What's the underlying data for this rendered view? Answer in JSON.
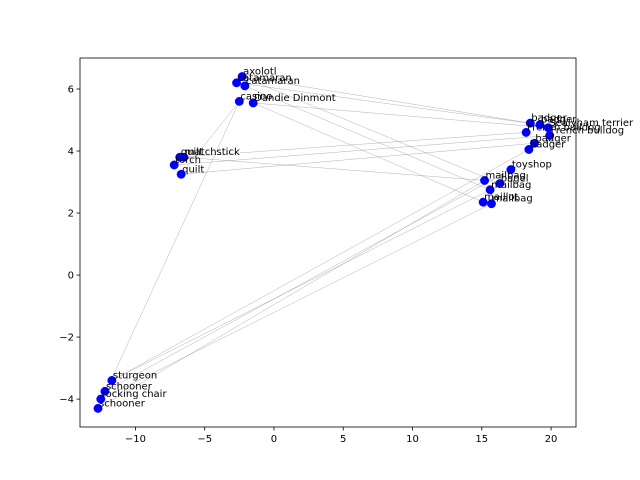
{
  "chart_data": {
    "type": "scatter",
    "title": "",
    "xlabel": "",
    "ylabel": "",
    "xlim": [
      -14.0,
      21.8
    ],
    "ylim": [
      -4.9,
      7.0
    ],
    "xticks": [
      -10,
      -5,
      0,
      5,
      10,
      15,
      20
    ],
    "yticks": [
      -4,
      -2,
      0,
      2,
      4,
      6
    ],
    "grid": false,
    "legend": "none",
    "marker_color": "#0000ff",
    "edge_color": "#7f7f7f",
    "points": [
      {
        "label": "axolotl",
        "x": -2.3,
        "y": 6.4
      },
      {
        "label": "catamaran",
        "x": -2.7,
        "y": 6.2
      },
      {
        "label": "catamaran",
        "x": -2.1,
        "y": 6.1
      },
      {
        "label": "casino",
        "x": -2.5,
        "y": 5.6
      },
      {
        "label": "Dandie Dinmont",
        "x": -1.5,
        "y": 5.55
      },
      {
        "label": "quilt",
        "x": -6.8,
        "y": 3.8
      },
      {
        "label": "matchstick",
        "x": -6.5,
        "y": 3.8
      },
      {
        "label": "torch",
        "x": -7.2,
        "y": 3.55
      },
      {
        "label": "quilt",
        "x": -6.7,
        "y": 3.25
      },
      {
        "label": "badger",
        "x": 18.5,
        "y": 4.9
      },
      {
        "label": "badger",
        "x": 19.2,
        "y": 4.85
      },
      {
        "label": "Sealyham terrier",
        "x": 19.8,
        "y": 4.75
      },
      {
        "label": "French bulldog",
        "x": 18.2,
        "y": 4.6
      },
      {
        "label": "French bulldog",
        "x": 19.9,
        "y": 4.5
      },
      {
        "label": "badger",
        "x": 18.8,
        "y": 4.25
      },
      {
        "label": "badger",
        "x": 18.4,
        "y": 4.05
      },
      {
        "label": "toyshop",
        "x": 17.1,
        "y": 3.4
      },
      {
        "label": "mailbag",
        "x": 15.2,
        "y": 3.05
      },
      {
        "label": "bagel",
        "x": 16.3,
        "y": 2.95
      },
      {
        "label": "mailbag",
        "x": 15.6,
        "y": 2.75
      },
      {
        "label": "maillot",
        "x": 15.1,
        "y": 2.35
      },
      {
        "label": "mailbag",
        "x": 15.7,
        "y": 2.3
      },
      {
        "label": "sturgeon",
        "x": -11.7,
        "y": -3.4
      },
      {
        "label": "schooner",
        "x": -12.2,
        "y": -3.75
      },
      {
        "label": "rocking chair",
        "x": -12.5,
        "y": -4.0
      },
      {
        "label": "schooner",
        "x": -12.7,
        "y": -4.3
      }
    ],
    "edges": [
      [
        0,
        9
      ],
      [
        1,
        10
      ],
      [
        2,
        19
      ],
      [
        3,
        8
      ],
      [
        3,
        25
      ],
      [
        4,
        20
      ],
      [
        4,
        11
      ],
      [
        5,
        12
      ],
      [
        6,
        17
      ],
      [
        7,
        13
      ],
      [
        8,
        14
      ],
      [
        0,
        18
      ],
      [
        22,
        15
      ],
      [
        23,
        16
      ],
      [
        24,
        21
      ],
      [
        25,
        17
      ],
      [
        22,
        19
      ]
    ]
  }
}
